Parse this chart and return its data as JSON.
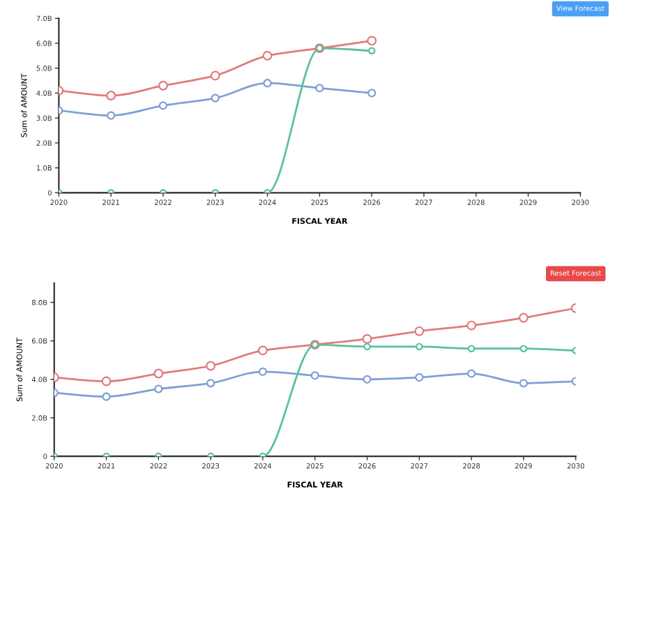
{
  "chart_data": [
    {
      "type": "line",
      "xlabel": "FISCAL YEAR",
      "ylabel": "Sum of AMOUNT",
      "annotations": [
        "View Forecast"
      ],
      "x": [
        2020,
        2021,
        2022,
        2023,
        2024,
        2025,
        2026
      ],
      "series": [
        {
          "color": "#e07b7b",
          "values": [
            4.1,
            3.9,
            4.3,
            4.7,
            5.5,
            5.8,
            6.1
          ]
        },
        {
          "color": "#7f9fd6",
          "values": [
            3.3,
            3.1,
            3.5,
            3.8,
            4.4,
            4.2,
            4.0
          ]
        },
        {
          "color": "#5cc09a",
          "values": [
            0,
            0,
            0,
            0,
            0,
            5.8,
            5.7
          ]
        }
      ],
      "xlim": [
        2020,
        2030
      ],
      "xticks": [
        2020,
        2021,
        2022,
        2023,
        2024,
        2025,
        2026,
        2027,
        2028,
        2029,
        2030
      ],
      "ylim": [
        0,
        7
      ],
      "yticks": [
        0,
        {
          "value": 1,
          "label": "1.0B"
        },
        {
          "value": 2,
          "label": "2.0B"
        },
        {
          "value": 3,
          "label": "3.0B"
        },
        {
          "value": 4,
          "label": "4.0B"
        },
        {
          "value": 5,
          "label": "5.0B"
        },
        {
          "value": 6,
          "label": "6.0B"
        },
        {
          "value": 7,
          "label": "7.0B"
        }
      ],
      "marker": "circle",
      "line_style": "solid",
      "grid": false,
      "legend": false
    },
    {
      "type": "line",
      "xlabel": "FISCAL YEAR",
      "ylabel": "Sum of AMOUNT",
      "annotations": [
        "Reset Forecast"
      ],
      "x": [
        2020,
        2021,
        2022,
        2023,
        2024,
        2025,
        2026,
        2027,
        2028,
        2029,
        2030
      ],
      "series": [
        {
          "color": "#e07b7b",
          "values": [
            4.1,
            3.9,
            4.3,
            4.7,
            5.5,
            5.8,
            6.1,
            6.5,
            6.8,
            7.2,
            7.7
          ]
        },
        {
          "color": "#7f9fd6",
          "values": [
            3.3,
            3.1,
            3.5,
            3.8,
            4.4,
            4.2,
            4.0,
            4.1,
            4.3,
            3.8,
            3.9
          ]
        },
        {
          "color": "#5cc09a",
          "values": [
            0,
            0,
            0,
            0,
            0,
            5.8,
            5.7,
            5.7,
            5.6,
            5.6,
            5.5
          ]
        }
      ],
      "xlim": [
        2020,
        2030
      ],
      "xticks": [
        2020,
        2021,
        2022,
        2023,
        2024,
        2025,
        2026,
        2027,
        2028,
        2029,
        2030
      ],
      "ylim": [
        0,
        9
      ],
      "yticks": [
        0,
        {
          "value": 2,
          "label": "2.0B"
        },
        {
          "value": 4,
          "label": "4.0B"
        },
        {
          "value": 6,
          "label": "6.0B"
        },
        {
          "value": 8,
          "label": "8.0B"
        }
      ],
      "marker": "circle",
      "line_style": "solid",
      "grid": false,
      "legend": false
    }
  ]
}
